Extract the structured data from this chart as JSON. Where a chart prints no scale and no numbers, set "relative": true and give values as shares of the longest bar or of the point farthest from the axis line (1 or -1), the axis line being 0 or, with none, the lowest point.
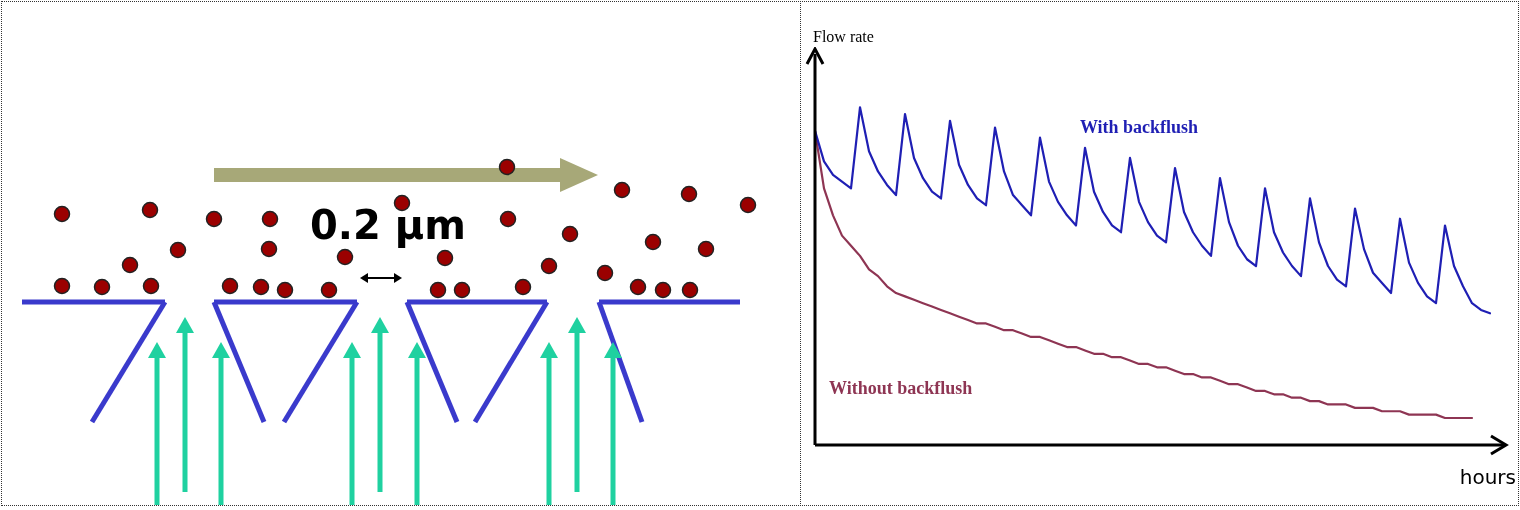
{
  "chart_data": [
    {
      "type": "other",
      "annotations": [
        "0.2 µm"
      ]
    },
    {
      "type": "line",
      "relative": true,
      "xlabel": "hours",
      "ylabel": "Flow rate",
      "legend": false,
      "marker": "none",
      "line_style": "solid",
      "categories": [
        null,
        null,
        null,
        null,
        null,
        null,
        null,
        null,
        null,
        null,
        null,
        null,
        null,
        null,
        null,
        null,
        null,
        null,
        null,
        null,
        null,
        null,
        null,
        null,
        null,
        null,
        null,
        null,
        null,
        null,
        null,
        null,
        null,
        null,
        null,
        null,
        null,
        null,
        null,
        null,
        null,
        null,
        null,
        null,
        null,
        null,
        null,
        null,
        null,
        null,
        null,
        null,
        null,
        null,
        null,
        null,
        null,
        null,
        null,
        null,
        null,
        null,
        null,
        null,
        null,
        null,
        null,
        null,
        null,
        null,
        null,
        null,
        null,
        null,
        null,
        null
      ],
      "series": [
        {
          "name": "With backflush",
          "color": "#1f1fb4",
          "values": [
            0.93,
            0.84,
            0.8,
            0.78,
            0.76,
            1.0,
            0.87,
            0.81,
            0.77,
            0.74,
            0.98,
            0.85,
            0.79,
            0.75,
            0.73,
            0.96,
            0.83,
            0.77,
            0.73,
            0.71,
            0.94,
            0.81,
            0.74,
            0.71,
            0.68,
            0.91,
            0.78,
            0.72,
            0.68,
            0.65,
            0.88,
            0.75,
            0.69,
            0.65,
            0.63,
            0.85,
            0.72,
            0.66,
            0.62,
            0.6,
            0.82,
            0.69,
            0.63,
            0.59,
            0.56,
            0.79,
            0.66,
            0.59,
            0.55,
            0.53,
            0.76,
            0.63,
            0.57,
            0.53,
            0.5,
            0.73,
            0.6,
            0.53,
            0.49,
            0.47,
            0.7,
            0.58,
            0.51,
            0.48,
            0.45,
            0.67,
            0.54,
            0.48,
            0.44,
            0.42,
            0.65,
            0.53,
            0.47,
            0.42,
            0.4,
            0.39
          ]
        },
        {
          "name": "Without backflush",
          "color": "#8e3553",
          "values": [
            0.93,
            0.76,
            0.68,
            0.62,
            0.59,
            0.56,
            0.52,
            0.5,
            0.47,
            0.45,
            0.44,
            0.43,
            0.42,
            0.41,
            0.4,
            0.39,
            0.38,
            0.37,
            0.36,
            0.36,
            0.35,
            0.34,
            0.34,
            0.33,
            0.32,
            0.32,
            0.31,
            0.3,
            0.29,
            0.29,
            0.28,
            0.27,
            0.27,
            0.26,
            0.26,
            0.25,
            0.24,
            0.24,
            0.23,
            0.23,
            0.22,
            0.21,
            0.21,
            0.2,
            0.2,
            0.19,
            0.18,
            0.18,
            0.17,
            0.16,
            0.16,
            0.15,
            0.15,
            0.14,
            0.14,
            0.13,
            0.13,
            0.12,
            0.12,
            0.12,
            0.11,
            0.11,
            0.11,
            0.1,
            0.1,
            0.1,
            0.09,
            0.09,
            0.09,
            0.09,
            0.08,
            0.08,
            0.08,
            0.08,
            null,
            null
          ]
        }
      ]
    }
  ]
}
